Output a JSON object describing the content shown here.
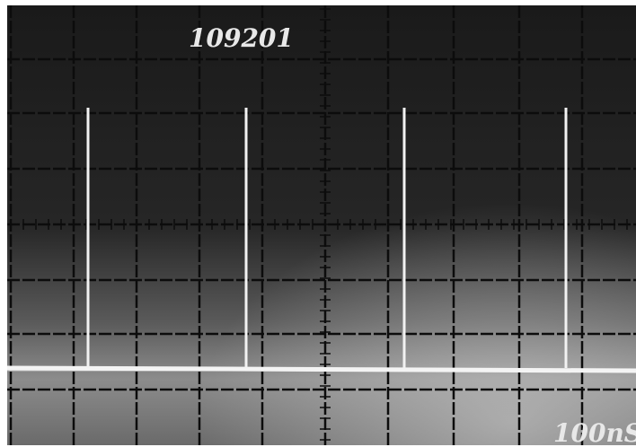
{
  "screen": {
    "label": "109201",
    "timebase": "100nS"
  }
}
